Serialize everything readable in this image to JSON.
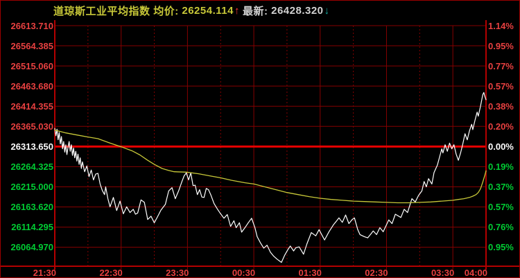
{
  "header": {
    "index_name": "道琼斯工业平均指数",
    "avg_label": "均价:",
    "avg_value": "26254.114",
    "avg_arrow": "↑",
    "last_label": "最新:",
    "last_value": "26428.320",
    "last_arrow": "↓"
  },
  "colors": {
    "background": "#000000",
    "grid": "#860000",
    "frame": "#b40000",
    "prev_close_line": "#e60000",
    "red_text": "#e84040",
    "green_text": "#00cc33",
    "white_text": "#ffffff",
    "price_line": "#ffffff",
    "avg_line": "#c8c838"
  },
  "chart_data": {
    "type": "line",
    "title": "道琼斯工业平均指数",
    "prev_close": 26313.65,
    "avg_price": 26254.114,
    "last_price": 26428.32,
    "grid": {
      "price_top": 26613.71,
      "price_bottom": 26064.97,
      "price_step": 49.325,
      "hour_minutes": [
        60,
        120,
        180,
        240,
        300,
        360
      ],
      "half_hour_minutes": [
        30,
        90,
        150,
        210,
        270,
        330
      ],
      "time_span_minutes": 390
    },
    "y_axis_left_labels": [
      "26613.710",
      "26564.385",
      "26515.060",
      "26463.680",
      "26414.355",
      "26365.030",
      "26313.650",
      "26264.325",
      "26215.000",
      "26163.620",
      "26114.295",
      "26064.970"
    ],
    "y_axis_right_labels": [
      "1.14%",
      "0.95%",
      "0.77%",
      "0.57%",
      "0.38%",
      "0.20%",
      "0.00%",
      "0.19%",
      "0.37%",
      "0.57%",
      "0.76%",
      "0.95%"
    ],
    "x_axis_labels": [
      {
        "label": "21:30",
        "minute": 0
      },
      {
        "label": "22:30",
        "minute": 60
      },
      {
        "label": "23:30",
        "minute": 120
      },
      {
        "label": "00:30",
        "minute": 180
      },
      {
        "label": "01:30",
        "minute": 240
      },
      {
        "label": "02:30",
        "minute": 300
      },
      {
        "label": "03:30",
        "minute": 360
      },
      {
        "label": "04:00",
        "minute": 390
      }
    ],
    "series": [
      {
        "name": "price",
        "color": "#ffffff",
        "width": 1.2,
        "points": [
          [
            0,
            26358
          ],
          [
            1,
            26340
          ],
          [
            2,
            26356
          ],
          [
            3,
            26330
          ],
          [
            4,
            26348
          ],
          [
            5,
            26320
          ],
          [
            6,
            26338
          ],
          [
            7,
            26308
          ],
          [
            8,
            26326
          ],
          [
            9,
            26300
          ],
          [
            10,
            26318
          ],
          [
            11,
            26294
          ],
          [
            12,
            26312
          ],
          [
            13,
            26326
          ],
          [
            14,
            26302
          ],
          [
            15,
            26318
          ],
          [
            16,
            26292
          ],
          [
            17,
            26310
          ],
          [
            18,
            26286
          ],
          [
            19,
            26302
          ],
          [
            20,
            26278
          ],
          [
            21,
            26295
          ],
          [
            22,
            26270
          ],
          [
            23,
            26286
          ],
          [
            24,
            26260
          ],
          [
            25,
            26276
          ],
          [
            27,
            26252
          ],
          [
            29,
            26266
          ],
          [
            31,
            26240
          ],
          [
            33,
            26256
          ],
          [
            35,
            26232
          ],
          [
            37,
            26246
          ],
          [
            39,
            26248
          ],
          [
            41,
            26222
          ],
          [
            43,
            26206
          ],
          [
            45,
            26196
          ],
          [
            46,
            26215
          ],
          [
            48,
            26186
          ],
          [
            50,
            26166
          ],
          [
            53,
            26189
          ],
          [
            56,
            26157
          ],
          [
            59,
            26180
          ],
          [
            62,
            26149
          ],
          [
            65,
            26166
          ],
          [
            68,
            26152
          ],
          [
            71,
            26160
          ],
          [
            73,
            26148
          ],
          [
            75,
            26151
          ],
          [
            78,
            26183
          ],
          [
            81,
            26177
          ],
          [
            84,
            26135
          ],
          [
            87,
            26143
          ],
          [
            90,
            26127
          ],
          [
            93,
            26142
          ],
          [
            96,
            26158
          ],
          [
            100,
            26172
          ],
          [
            103,
            26205
          ],
          [
            106,
            26213
          ],
          [
            109,
            26186
          ],
          [
            112,
            26205
          ],
          [
            115,
            26228
          ],
          [
            117,
            26242
          ],
          [
            119,
            26249
          ],
          [
            121,
            26232
          ],
          [
            123,
            26249
          ],
          [
            125,
            26218
          ],
          [
            127,
            26219
          ],
          [
            129,
            26196
          ],
          [
            131,
            26208
          ],
          [
            133,
            26190
          ],
          [
            135,
            26189
          ],
          [
            137,
            26211
          ],
          [
            139,
            26208
          ],
          [
            141,
            26196
          ],
          [
            144,
            26174
          ],
          [
            147,
            26161
          ],
          [
            150,
            26149
          ],
          [
            153,
            26138
          ],
          [
            156,
            26147
          ],
          [
            159,
            26118
          ],
          [
            162,
            26132
          ],
          [
            164,
            26115
          ],
          [
            167,
            26127
          ],
          [
            169,
            26104
          ],
          [
            172,
            26115
          ],
          [
            175,
            26127
          ],
          [
            178,
            26138
          ],
          [
            181,
            26115
          ],
          [
            183,
            26093
          ],
          [
            186,
            26078
          ],
          [
            189,
            26065
          ],
          [
            192,
            26072
          ],
          [
            195,
            26055
          ],
          [
            198,
            26045
          ],
          [
            201,
            26038
          ],
          [
            205,
            26030
          ],
          [
            208,
            26048
          ],
          [
            211,
            26062
          ],
          [
            213,
            26070
          ],
          [
            216,
            26058
          ],
          [
            218,
            26066
          ],
          [
            221,
            26068
          ],
          [
            225,
            26050
          ],
          [
            228,
            26075
          ],
          [
            232,
            26103
          ],
          [
            236,
            26095
          ],
          [
            239,
            26110
          ],
          [
            244,
            26085
          ],
          [
            248,
            26105
          ],
          [
            252,
            26122
          ],
          [
            255,
            26132
          ],
          [
            257,
            26139
          ],
          [
            260,
            26128
          ],
          [
            263,
            26146
          ],
          [
            266,
            26125
          ],
          [
            269,
            26135
          ],
          [
            271,
            26139
          ],
          [
            274,
            26110
          ],
          [
            276,
            26098
          ],
          [
            280,
            26093
          ],
          [
            283,
            26090
          ],
          [
            286,
            26100
          ],
          [
            288,
            26107
          ],
          [
            291,
            26098
          ],
          [
            294,
            26115
          ],
          [
            297,
            26105
          ],
          [
            302,
            26134
          ],
          [
            305,
            26125
          ],
          [
            308,
            26148
          ],
          [
            313,
            26140
          ],
          [
            316,
            26160
          ],
          [
            319,
            26152
          ],
          [
            323,
            26186
          ],
          [
            326,
            26178
          ],
          [
            329,
            26194
          ],
          [
            332,
            26205
          ],
          [
            334,
            26228
          ],
          [
            336,
            26215
          ],
          [
            338,
            26235
          ],
          [
            341,
            26222
          ],
          [
            343,
            26250
          ],
          [
            346,
            26268
          ],
          [
            348,
            26288
          ],
          [
            350,
            26308
          ],
          [
            351,
            26298
          ],
          [
            353,
            26318
          ],
          [
            355,
            26302
          ],
          [
            357,
            26322
          ],
          [
            359,
            26308
          ],
          [
            361,
            26318
          ],
          [
            363,
            26295
          ],
          [
            365,
            26280
          ],
          [
            367,
            26298
          ],
          [
            369,
            26320
          ],
          [
            371,
            26345
          ],
          [
            373,
            26330
          ],
          [
            375,
            26352
          ],
          [
            377,
            26368
          ],
          [
            378,
            26355
          ],
          [
            380,
            26378
          ],
          [
            382,
            26398
          ],
          [
            383,
            26388
          ],
          [
            385,
            26412
          ],
          [
            387,
            26440
          ],
          [
            388,
            26446
          ],
          [
            389,
            26436
          ],
          [
            390,
            26428.32
          ]
        ]
      },
      {
        "name": "avg_price",
        "color": "#c8c838",
        "width": 1.3,
        "points": [
          [
            0,
            26354
          ],
          [
            10,
            26347
          ],
          [
            20,
            26342
          ],
          [
            30,
            26337
          ],
          [
            39,
            26333
          ],
          [
            50,
            26322
          ],
          [
            60,
            26313
          ],
          [
            70,
            26303
          ],
          [
            77,
            26293
          ],
          [
            84,
            26280
          ],
          [
            90,
            26270
          ],
          [
            97,
            26260
          ],
          [
            103,
            26255
          ],
          [
            108,
            26252
          ],
          [
            119,
            26251
          ],
          [
            130,
            26247
          ],
          [
            140,
            26242
          ],
          [
            150,
            26237
          ],
          [
            160,
            26231
          ],
          [
            172,
            26225
          ],
          [
            180,
            26222
          ],
          [
            190,
            26215
          ],
          [
            200,
            26208
          ],
          [
            210,
            26201
          ],
          [
            220,
            26196
          ],
          [
            230,
            26191
          ],
          [
            240,
            26187
          ],
          [
            250,
            26184
          ],
          [
            260,
            26182
          ],
          [
            270,
            26180
          ],
          [
            280,
            26179
          ],
          [
            290,
            26178
          ],
          [
            300,
            26177
          ],
          [
            310,
            26176
          ],
          [
            320,
            26176
          ],
          [
            330,
            26177
          ],
          [
            340,
            26178
          ],
          [
            350,
            26180
          ],
          [
            360,
            26182
          ],
          [
            365,
            26184
          ],
          [
            370,
            26186
          ],
          [
            375,
            26189
          ],
          [
            378,
            26192
          ],
          [
            381,
            26196
          ],
          [
            383,
            26201
          ],
          [
            385,
            26210
          ],
          [
            387,
            26226
          ],
          [
            389,
            26244
          ],
          [
            390,
            26254.114
          ]
        ]
      }
    ]
  }
}
